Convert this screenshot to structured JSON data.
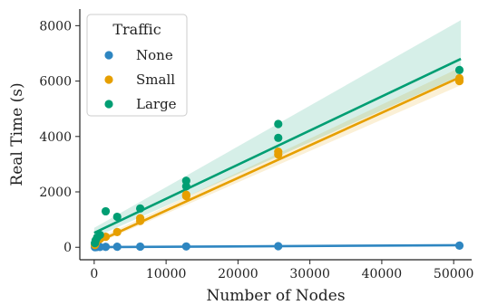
{
  "chart_data": {
    "type": "scatter",
    "xlabel": "Number of Nodes",
    "ylabel": "Real Time (s)",
    "xlim": [
      -2000,
      52500
    ],
    "ylim": [
      -450,
      8600
    ],
    "xticks": [
      0,
      10000,
      20000,
      30000,
      40000,
      50000
    ],
    "yticks": [
      0,
      2000,
      4000,
      6000,
      8000
    ],
    "xtick_labels": [
      "0",
      "10000",
      "20000",
      "30000",
      "40000",
      "50000"
    ],
    "ytick_labels": [
      "0",
      "2000",
      "4000",
      "6000",
      "8000"
    ],
    "grid": false,
    "legend": {
      "title": "Traffic",
      "placement": "top-left"
    },
    "series": [
      {
        "name": "None",
        "color": "#2e86c1",
        "x": [
          100,
          200,
          400,
          800,
          1600,
          3200,
          6400,
          12800,
          25600,
          50800
        ],
        "y": [
          5,
          8,
          10,
          12,
          15,
          20,
          25,
          30,
          40,
          60
        ],
        "fit": {
          "x": [
            0,
            51000
          ],
          "y": [
            5,
            75
          ]
        },
        "band": {
          "x": [
            0,
            51000
          ],
          "lower": [
            0,
            55
          ],
          "upper": [
            10,
            95
          ]
        }
      },
      {
        "name": "Small",
        "color": "#e69f00",
        "x": [
          100,
          200,
          400,
          800,
          1000,
          1600,
          3200,
          6400,
          6400,
          12800,
          12800,
          25600,
          25600,
          50800,
          50800
        ],
        "y": [
          80,
          150,
          250,
          300,
          350,
          380,
          550,
          950,
          1050,
          1850,
          1900,
          3350,
          3450,
          6000,
          6100
        ],
        "fit": {
          "x": [
            0,
            51000
          ],
          "y": [
            150,
            6150
          ]
        },
        "band": {
          "x": [
            0,
            51000
          ],
          "lower": [
            80,
            5850
          ],
          "upper": [
            250,
            6500
          ]
        }
      },
      {
        "name": "Large",
        "color": "#009e73",
        "x": [
          100,
          200,
          400,
          800,
          1600,
          3200,
          6400,
          12800,
          12800,
          25600,
          25600,
          50800
        ],
        "y": [
          150,
          250,
          350,
          450,
          1300,
          1100,
          1400,
          2200,
          2400,
          3950,
          4450,
          6400
        ],
        "fit": {
          "x": [
            0,
            51000
          ],
          "y": [
            520,
            6800
          ]
        },
        "band": {
          "x": [
            0,
            51000
          ],
          "lower": [
            350,
            6200
          ],
          "upper": [
            700,
            8200
          ]
        }
      }
    ]
  }
}
